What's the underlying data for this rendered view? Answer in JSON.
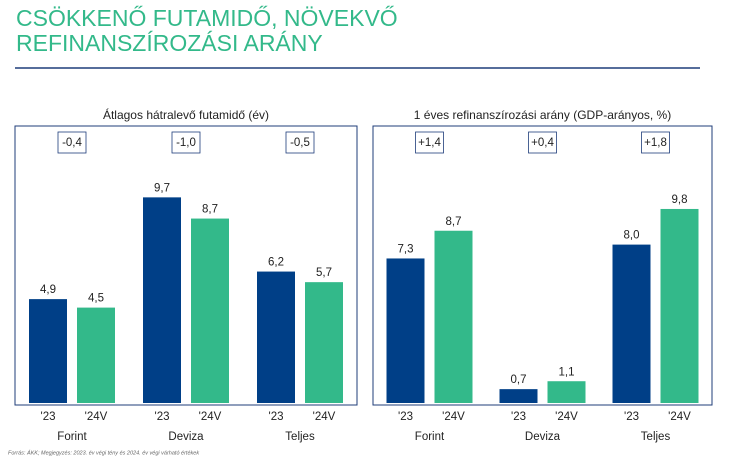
{
  "title": "CSÖKKENŐ FUTAMIDŐ, NÖVEKVŐ REFINANSZÍROZÁSI ARÁNY",
  "footnote": "Forrás: ÁKK; Megjegyzés: 2023. év végi tény és 2024. év végi várható értékek",
  "chart_data": [
    {
      "type": "bar",
      "title": "Átlagos hátralevő futamidő (év)",
      "categories": [
        "Forint",
        "Deviza",
        "Teljes"
      ],
      "annotations": [
        "-0,4",
        "-1,0",
        "-0,5"
      ],
      "ylim": [
        0,
        10
      ],
      "series": [
        {
          "name": "'23",
          "color": "#003f87",
          "values": [
            4.9,
            9.7,
            6.2
          ],
          "value_labels": [
            "4,9",
            "9,7",
            "6,2"
          ]
        },
        {
          "name": "'24V",
          "color": "#33b98a",
          "values": [
            4.5,
            8.7,
            5.7
          ],
          "value_labels": [
            "4,5",
            "8,7",
            "5,7"
          ]
        }
      ]
    },
    {
      "type": "bar",
      "title": "1 éves refinanszírozási arány (GDP-arányos, %)",
      "categories": [
        "Forint",
        "Deviza",
        "Teljes"
      ],
      "annotations": [
        "+1,4",
        "+0,4",
        "+1,8"
      ],
      "ylim": [
        0,
        10
      ],
      "series": [
        {
          "name": "'23",
          "color": "#003f87",
          "values": [
            7.3,
            0.7,
            8.0
          ],
          "value_labels": [
            "7,3",
            "0,7",
            "8,0"
          ]
        },
        {
          "name": "'24V",
          "color": "#33b98a",
          "values": [
            8.7,
            1.1,
            9.8
          ],
          "value_labels": [
            "8,7",
            "1,1",
            "9,8"
          ]
        }
      ]
    }
  ]
}
